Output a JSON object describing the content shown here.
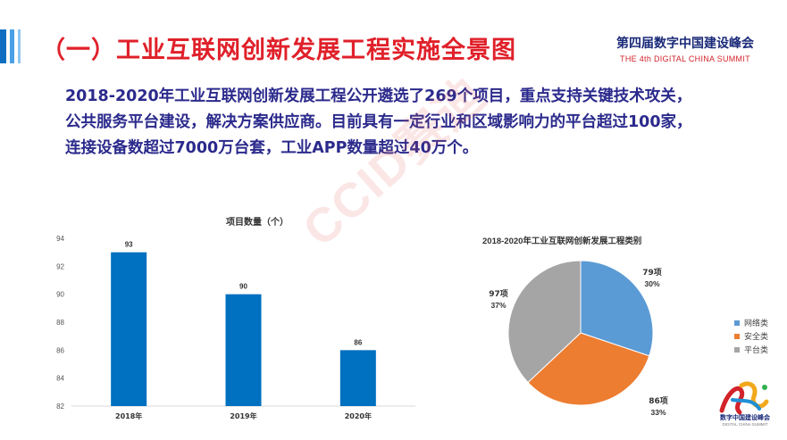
{
  "slide": {
    "title": "（一）工业互联网创新发展工程实施全景图",
    "summary_lines": [
      "2018-2020年工业互联网创新发展工程公开遴选了269个项目，重点支持关键技术攻关，",
      "公共服务平台建设，解决方案供应商。目前具有一定行业和区域影响力的平台超过100家，",
      "连接设备数超过7000万台套，工业APP数量超过40万个。"
    ],
    "watermark": "CCID赛迪"
  },
  "brand": {
    "name_cn": "第四届数字中国建设峰会",
    "name_en": "THE 4th DIGITAL CHINA SUMMIT",
    "logo_text": "数字中国建设峰会",
    "logo_sub": "DIGITAL CHINA SUMMIT"
  },
  "colors": {
    "title_red": "#e0202a",
    "text_navy": "#2b2a8c",
    "bar_blue": "#0070c0"
  },
  "chart_data": [
    {
      "type": "bar",
      "title": "项目数量（个）",
      "categories": [
        "2018年",
        "2019年",
        "2020年"
      ],
      "values": [
        93,
        90,
        86
      ],
      "data_labels": [
        "93",
        "90",
        "86"
      ],
      "ylim": [
        82,
        94
      ],
      "yticks": [
        "82",
        "84",
        "86",
        "88",
        "90",
        "92",
        "94"
      ],
      "grid": false,
      "color": "#0070c0"
    },
    {
      "type": "pie",
      "title": "2018-2020年工业互联网创新发展工程类别",
      "slices": [
        {
          "name": "网络类",
          "value": 79,
          "value_label": "79项",
          "percent_label": "30%",
          "color": "#5b9bd5"
        },
        {
          "name": "安全类",
          "value": 86,
          "value_label": "86项",
          "percent_label": "33%",
          "color": "#ed7d31"
        },
        {
          "name": "平台类",
          "value": 97,
          "value_label": "97项",
          "percent_label": "37%",
          "color": "#a5a5a5"
        }
      ],
      "legend": "right"
    }
  ]
}
